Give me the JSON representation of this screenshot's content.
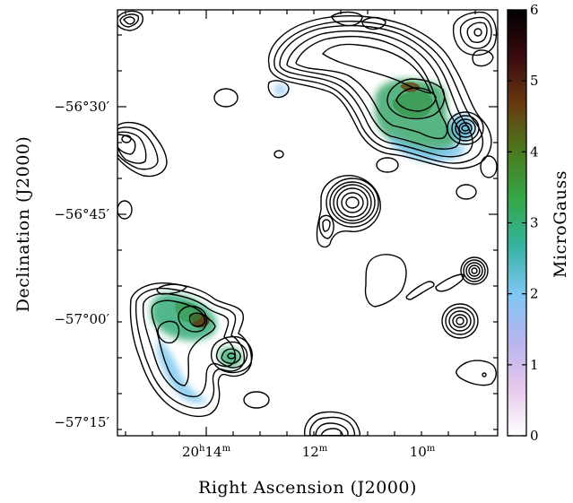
{
  "chart_data": {
    "type": "heatmap",
    "title": "",
    "xlabel": "Right Ascension (J2000)",
    "ylabel": "Declination (J2000)",
    "x_ticks": [
      {
        "h": "20",
        "h_unit": "h",
        "m": "14",
        "m_unit": "m"
      },
      {
        "h": "",
        "h_unit": "",
        "m": "12",
        "m_unit": "m"
      },
      {
        "h": "",
        "h_unit": "",
        "m": "10",
        "m_unit": "m"
      }
    ],
    "y_ticks": [
      "−56°30′",
      "−56°45′",
      "−57°00′",
      "−57°15′"
    ],
    "colorbar": {
      "label": "MicroGauss",
      "range": [
        0,
        6
      ],
      "ticks": [
        "0",
        "1",
        "2",
        "3",
        "4",
        "5",
        "6"
      ],
      "colors": [
        "#ffffff",
        "#e6c8ec",
        "#b8b4ee",
        "#7fc6f4",
        "#34b4a2",
        "#34a847",
        "#4a7a1e",
        "#6a3a10",
        "#3a0a10",
        "#000000"
      ]
    },
    "magnetic_field_regions": [
      {
        "name": "northeast lobe",
        "ra": "20h10.2m",
        "dec": "−56°30′",
        "peak_microgauss": 5.0
      },
      {
        "name": "northeast compact knot",
        "ra": "20h09.3m",
        "dec": "−56°35′",
        "peak_microgauss": 2.5
      },
      {
        "name": "southwest lobe",
        "ra": "20h14.0m",
        "dec": "−57°01′",
        "peak_microgauss": 5.5
      },
      {
        "name": "southwest compact knot",
        "ra": "20h13.6m",
        "dec": "−57°06′",
        "peak_microgauss": 3.0
      },
      {
        "name": "northeast wing",
        "ra": "20h12.7m",
        "dec": "−56°29′",
        "peak_microgauss": 1.5
      }
    ]
  }
}
